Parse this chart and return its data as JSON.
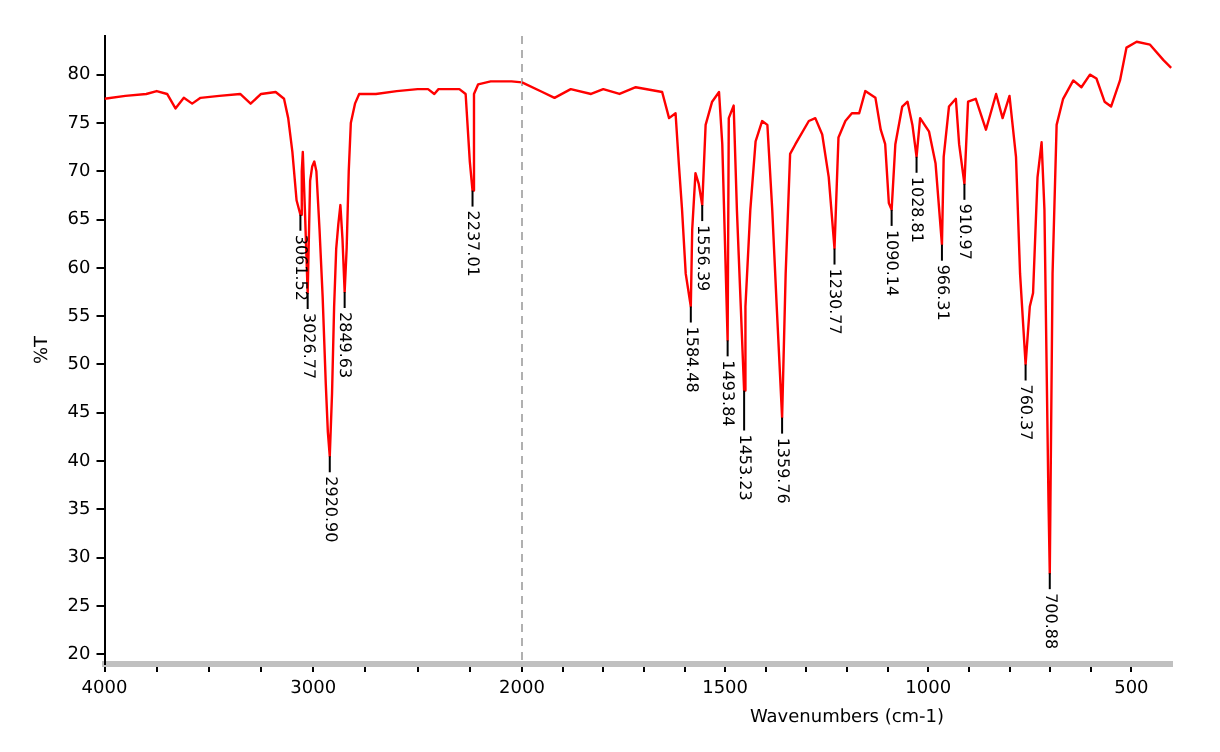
{
  "chart_data": [
    {
      "type": "line",
      "ylabel": "%T",
      "grid": false,
      "legend": false,
      "marker": "none",
      "xlim": [
        4000,
        2000
      ],
      "ylim": [
        19,
        84
      ],
      "xticks": [
        4000,
        {
          "value": 3750,
          "label": null
        },
        {
          "value": 3500,
          "label": null
        },
        {
          "value": 3250,
          "label": null
        },
        3000,
        {
          "value": 2750,
          "label": null
        },
        {
          "value": 2500,
          "label": null
        },
        {
          "value": 2250,
          "label": null
        },
        2000
      ],
      "yticks": [
        20,
        25,
        30,
        35,
        40,
        45,
        50,
        55,
        60,
        65,
        70,
        75,
        80
      ],
      "series": [
        {
          "color": "#ff0000",
          "x": [
            4000,
            3900,
            3800,
            3750,
            3700,
            3660,
            3620,
            3580,
            3540,
            3450,
            3350,
            3300,
            3250,
            3180,
            3140,
            3120,
            3100,
            3080,
            3061.52,
            3055,
            3050,
            3040,
            3026.77,
            3015,
            3005,
            2995,
            2985,
            2970,
            2955,
            2940,
            2930,
            2920.9,
            2910,
            2900,
            2890,
            2880,
            2870,
            2860,
            2849.63,
            2840,
            2830,
            2820,
            2800,
            2780,
            2700,
            2600,
            2500,
            2450,
            2420,
            2400,
            2300,
            2270,
            2250,
            2237.01,
            2230,
            2210,
            2150,
            2050,
            2000
          ],
          "values": [
            77.5,
            77.8,
            78,
            78.3,
            78,
            76.5,
            77.6,
            77,
            77.6,
            77.8,
            78,
            77,
            78,
            78.2,
            77.5,
            75.5,
            72,
            67,
            65.5,
            70,
            72,
            66,
            57.4,
            69,
            70.5,
            71,
            70,
            64,
            57,
            48,
            43,
            40.5,
            47,
            56,
            62,
            64.5,
            66.5,
            63,
            57.5,
            62,
            70,
            75,
            77,
            78,
            78,
            78.3,
            78.5,
            78.5,
            78,
            78.5,
            78.5,
            78,
            71,
            68,
            78,
            79,
            79.3,
            79.3,
            79.2
          ]
        }
      ],
      "annotations": [
        {
          "text": "3061.52",
          "x": 3061.52,
          "y": 65.5
        },
        {
          "text": "3026.77",
          "x": 3026.77,
          "y": 57.4
        },
        {
          "text": "2920.90",
          "x": 2920.9,
          "y": 40.5
        },
        {
          "text": "2849.63",
          "x": 2849.63,
          "y": 57.5
        },
        {
          "text": "2237.01",
          "x": 2237.01,
          "y": 68
        }
      ]
    },
    {
      "type": "line",
      "xlabel": "Wavenumbers (cm-1)",
      "grid": false,
      "legend": false,
      "marker": "none",
      "tick_labels": "x",
      "xlim": [
        2000,
        400
      ],
      "ylim": [
        19,
        84
      ],
      "xticks": [
        {
          "value": 1900,
          "label": null
        },
        {
          "value": 1800,
          "label": null
        },
        {
          "value": 1700,
          "label": null
        },
        {
          "value": 1600,
          "label": null
        },
        1500,
        {
          "value": 1400,
          "label": null
        },
        {
          "value": 1300,
          "label": null
        },
        {
          "value": 1200,
          "label": null
        },
        {
          "value": 1100,
          "label": null
        },
        1000,
        {
          "value": 900,
          "label": null
        },
        {
          "value": 800,
          "label": null
        },
        {
          "value": 700,
          "label": null
        },
        {
          "value": 600,
          "label": null
        },
        500
      ],
      "ref_lines": [
        {
          "axis": "x",
          "value": 2000,
          "color": "#b0b0b0",
          "line_style": "dashed"
        }
      ],
      "series": [
        {
          "color": "#ff0000",
          "x": [
            2000,
            1950,
            1920,
            1880,
            1830,
            1800,
            1760,
            1720,
            1655,
            1638,
            1622,
            1614,
            1606,
            1597,
            1584.48,
            1581,
            1573,
            1565,
            1556.39,
            1548,
            1532,
            1515,
            1507,
            1493.84,
            1491,
            1479,
            1471,
            1453.23,
            1450,
            1438,
            1425,
            1409,
            1396,
            1384,
            1373,
            1359.76,
            1351,
            1340,
            1327,
            1294,
            1278,
            1261,
            1245,
            1230.77,
            1221,
            1204,
            1188,
            1170,
            1155,
            1130,
            1117,
            1106,
            1097,
            1090.14,
            1081,
            1064,
            1051,
            1039,
            1028.81,
            1020,
            998,
            982,
            966.31,
            962,
            949,
            932,
            924,
            910.97,
            902,
            883,
            858,
            833,
            817,
            800,
            784,
            774,
            760.37,
            750,
            742,
            731,
            721,
            714,
            704,
            700.88,
            694,
            684,
            668,
            643,
            623,
            602,
            586,
            566,
            550,
            528,
            512,
            487,
            454,
            421,
            402
          ],
          "values": [
            79.2,
            78.2,
            77.6,
            78.5,
            78,
            78.5,
            78,
            78.7,
            78.2,
            75.5,
            76,
            70.8,
            66,
            59.4,
            56,
            64,
            69.8,
            68.7,
            66.5,
            74.8,
            77.2,
            78.2,
            72.8,
            52.5,
            75.5,
            76.8,
            66,
            47.3,
            56,
            66,
            73.1,
            75.2,
            74.8,
            66,
            56,
            44.5,
            59.4,
            71.8,
            72.8,
            75.2,
            75.5,
            73.8,
            69.4,
            62,
            73.5,
            75.2,
            76,
            76,
            78.3,
            77.6,
            74.3,
            72.8,
            66.7,
            66,
            72.8,
            76.7,
            77.2,
            74.8,
            71.5,
            75.5,
            74.1,
            70.8,
            62.4,
            71.5,
            76.7,
            77.5,
            72.8,
            68.7,
            77.2,
            77.5,
            74.3,
            78,
            75.5,
            77.8,
            71.5,
            59.4,
            50,
            56,
            57.4,
            69.4,
            73,
            66,
            35.8,
            28.4,
            59.4,
            74.8,
            77.5,
            79.4,
            78.7,
            80,
            79.6,
            77.2,
            76.7,
            79.4,
            82.8,
            83.4,
            83.1,
            81.5,
            80.7
          ]
        }
      ],
      "annotations": [
        {
          "text": "1584.48",
          "x": 1584.48,
          "y": 56
        },
        {
          "text": "1556.39",
          "x": 1556.39,
          "y": 66.5
        },
        {
          "text": "1493.84",
          "x": 1493.84,
          "y": 52.5
        },
        {
          "text": "1453.23",
          "x": 1453.23,
          "y": 47.3
        },
        {
          "text": "1359.76",
          "x": 1359.76,
          "y": 44.5
        },
        {
          "text": "1230.77",
          "x": 1230.77,
          "y": 62
        },
        {
          "text": "1090.14",
          "x": 1090.14,
          "y": 66
        },
        {
          "text": "1028.81",
          "x": 1028.81,
          "y": 71.5
        },
        {
          "text": "966.31",
          "x": 966.31,
          "y": 62.4
        },
        {
          "text": "910.97",
          "x": 910.97,
          "y": 68.7
        },
        {
          "text": "760.37",
          "x": 760.37,
          "y": 50
        },
        {
          "text": "700.88",
          "x": 700.88,
          "y": 28.4
        }
      ]
    }
  ]
}
